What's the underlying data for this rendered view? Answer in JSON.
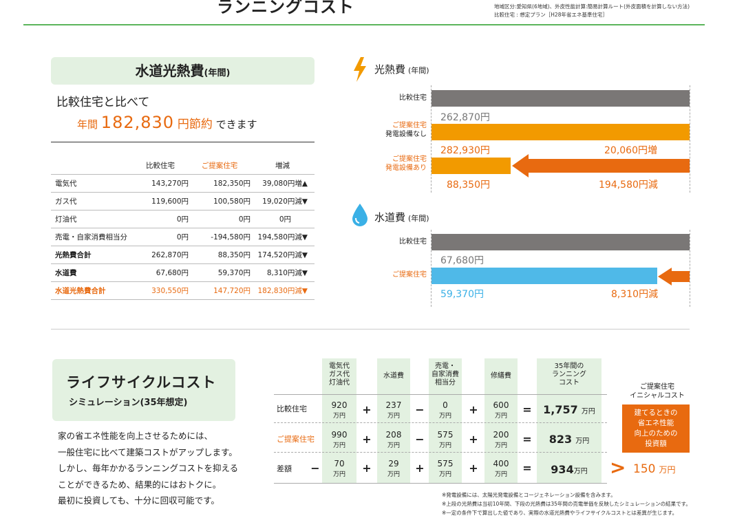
{
  "header": {
    "title": "ランニングコスト",
    "note1": "地域区分:愛知県(6地域)、外皮性能計算:簡易計算ルート(外皮面積を計算しない方法)",
    "note2": "比較住宅 : 想定プラン［H28年省エネ基準住宅］"
  },
  "water_utility": {
    "box_title": "水道光熱費",
    "box_suffix": "(年間)",
    "compare_text": "比較住宅と比べて",
    "saving_prefix": "年間",
    "saving_amount": "182,830",
    "saving_unit": "円節約",
    "saving_suffix": "できます"
  },
  "cost_table": {
    "headers": [
      "",
      "比較住宅",
      "ご提案住宅",
      "増減"
    ],
    "rows": [
      {
        "label": "電気代",
        "compare": "143,270円",
        "proposal": "182,350円",
        "diff": "39,080円増▲"
      },
      {
        "label": "ガス代",
        "compare": "119,600円",
        "proposal": "100,580円",
        "diff": "19,020円減▼"
      },
      {
        "label": "灯油代",
        "compare": "0円",
        "proposal": "0円",
        "diff": "0円"
      },
      {
        "label": "売電・自家消費相当分",
        "compare": "0円",
        "proposal": "-194,580円",
        "diff": "194,580円減▼"
      },
      {
        "label": "光熱費合計",
        "compare": "262,870円",
        "proposal": "88,350円",
        "diff": "174,520円減▼"
      },
      {
        "label": "水道費",
        "compare": "67,680円",
        "proposal": "59,370円",
        "diff": "8,310円減▼"
      },
      {
        "label": "水道光熱費合計",
        "compare": "330,550円",
        "proposal": "147,720円",
        "diff": "182,830円減▼"
      }
    ]
  },
  "energy_chart": {
    "title": "光熱費",
    "suffix": "(年間)",
    "icon": "lightning-icon",
    "rows": [
      {
        "label1": "比較住宅",
        "label2": "",
        "value_label": "262,870円",
        "diff_label": ""
      },
      {
        "label1": "ご提案住宅",
        "label2": "発電設備なし",
        "value_label": "282,930円",
        "diff_label": "20,060円増"
      },
      {
        "label1": "ご提案住宅",
        "label2": "発電設備あり",
        "value_label": "88,350円",
        "diff_label": "194,580円減"
      }
    ]
  },
  "water_chart": {
    "title": "水道費",
    "suffix": "(年間)",
    "icon": "water-drop-icon",
    "rows": [
      {
        "label1": "比較住宅",
        "value_label": "67,680円",
        "diff_label": ""
      },
      {
        "label1": "ご提案住宅",
        "value_label": "59,370円",
        "diff_label": "8,310円減"
      }
    ]
  },
  "lifecycle": {
    "title": "ライフサイクルコスト",
    "subtitle": "シミュレーション(35年想定)",
    "description": [
      "家の省エネ性能を向上させるためには、",
      "一般住宅に比べて建築コストがアップします。",
      "しかし、毎年かかるランニングコストを抑える",
      "ことができるため、結果的にはおトクに。",
      "最初に投資しても、十分に回収可能です。"
    ],
    "col_headers": [
      "電気代\nガス代\n灯油代",
      "水道費",
      "売電・\n自家消費\n相当分",
      "修繕費",
      "35年間の\nランニング\nコスト"
    ],
    "unit": "万円",
    "rows": [
      {
        "label": "比較住宅",
        "lead_op": "",
        "c1": "920",
        "op1": "+",
        "c2": "237",
        "op2": "−",
        "c3": "0",
        "op3": "+",
        "c4": "600",
        "eq": "=",
        "total": "1,757"
      },
      {
        "label": "ご提案住宅",
        "lead_op": "",
        "c1": "990",
        "op1": "+",
        "c2": "208",
        "op2": "−",
        "c3": "575",
        "op3": "+",
        "c4": "200",
        "eq": "=",
        "total": "823"
      },
      {
        "label": "差額",
        "lead_op": "−",
        "c1": "70",
        "op1": "+",
        "c2": "29",
        "op2": "+",
        "c3": "575",
        "op3": "+",
        "c4": "400",
        "eq": "=",
        "total": "934"
      }
    ],
    "initial_title": "ご提案住宅\nイニシャルコスト",
    "initial_box": "建てるときの\n省エネ性能\n向上のための\n投資額",
    "initial_arrow": ">",
    "initial_value": "150",
    "initial_unit": "万円"
  },
  "footnotes": [
    "※発電設備には、太陽光発電設備とコージェネレーション設備を含みます。",
    "※上段の光熱費は当初10年間、下段の光熱費は35年間の売電単価を反映したシミュレーションの結果です。",
    "※一定の条件下で算出した値であり、実際の水道光熱費やライフサイクルコストとは差異が生じます。"
  ],
  "colors": {
    "accent_green": "#5bb55b",
    "light_green": "#e3f1e1",
    "orange": "#e86a10",
    "bar_orange": "#f29a00",
    "bar_gray": "#7a7776",
    "bar_blue": "#4fb9e8"
  }
}
